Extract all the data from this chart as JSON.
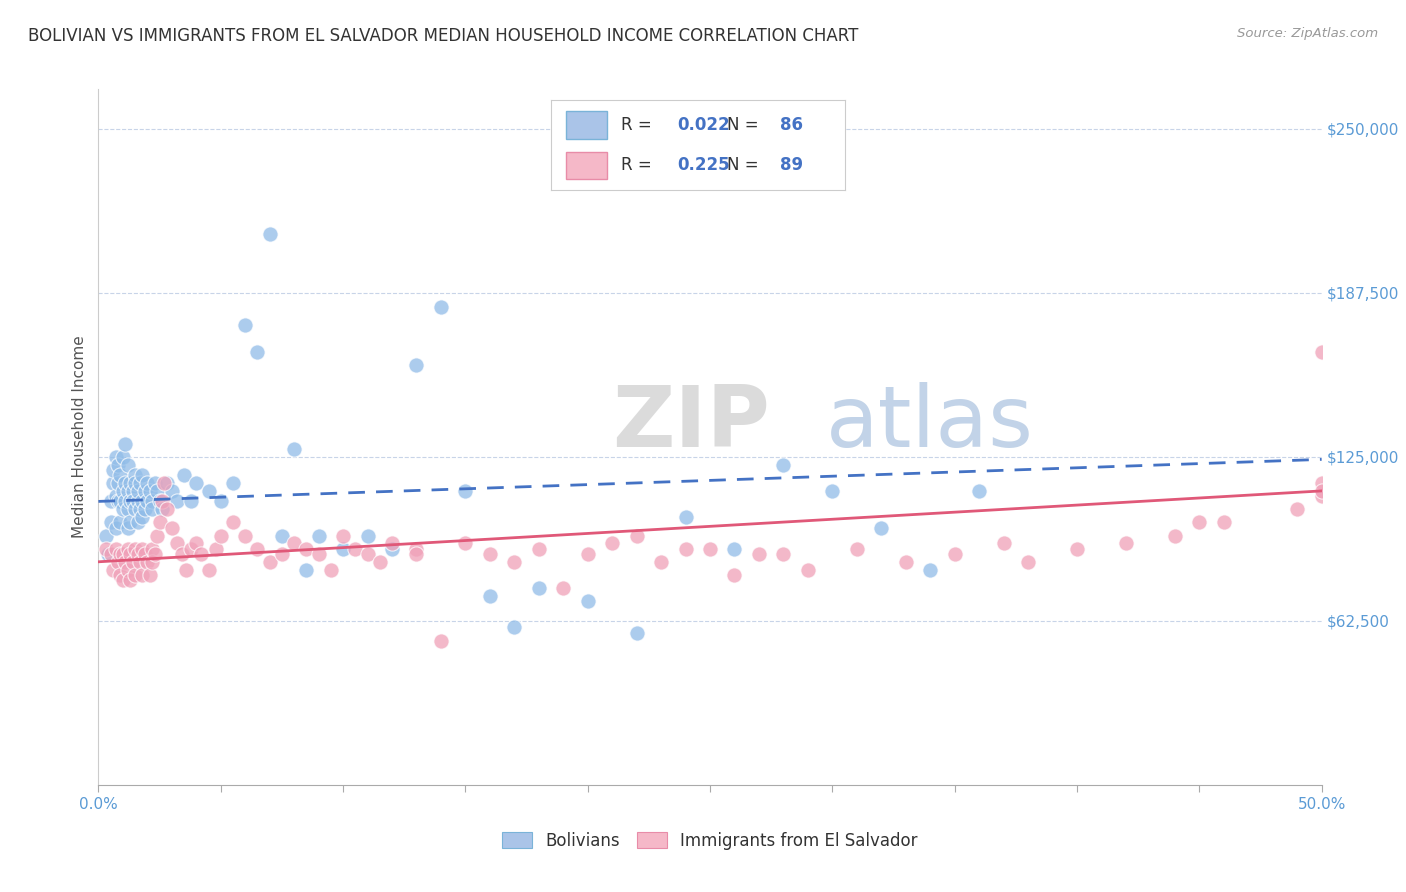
{
  "title": "BOLIVIAN VS IMMIGRANTS FROM EL SALVADOR MEDIAN HOUSEHOLD INCOME CORRELATION CHART",
  "source": "Source: ZipAtlas.com",
  "ylabel": "Median Household Income",
  "y_ticks": [
    62500,
    125000,
    187500,
    250000
  ],
  "y_tick_labels": [
    "$62,500",
    "$125,000",
    "$187,500",
    "$250,000"
  ],
  "x_range": [
    0.0,
    0.5
  ],
  "y_range": [
    0,
    265000
  ],
  "legend_entry1": {
    "color_face": "#aac4e8",
    "color_border": "#7ab3d8",
    "R": "0.022",
    "N": "86"
  },
  "legend_entry2": {
    "color_face": "#f5b8c8",
    "color_border": "#e88ca8",
    "R": "0.225",
    "N": "89"
  },
  "legend_label1": "Bolivians",
  "legend_label2": "Immigrants from El Salvador",
  "blue_scatter_color": "#90bce8",
  "pink_scatter_color": "#f0a0b8",
  "blue_line_color": "#4472c4",
  "pink_line_color": "#e05878",
  "watermark_zip": "ZIP",
  "watermark_atlas": "atlas",
  "background_color": "#ffffff",
  "grid_color": "#c8d4e8",
  "axis_tick_color": "#5b9bd5",
  "title_color": "#333333",
  "ylabel_color": "#555555",
  "title_fontsize": 12,
  "label_fontsize": 11,
  "tick_fontsize": 11,
  "blue_scatter_x": [
    0.003,
    0.004,
    0.005,
    0.005,
    0.006,
    0.006,
    0.007,
    0.007,
    0.007,
    0.008,
    0.008,
    0.008,
    0.009,
    0.009,
    0.009,
    0.01,
    0.01,
    0.01,
    0.011,
    0.011,
    0.011,
    0.012,
    0.012,
    0.012,
    0.012,
    0.013,
    0.013,
    0.013,
    0.014,
    0.014,
    0.015,
    0.015,
    0.015,
    0.016,
    0.016,
    0.016,
    0.017,
    0.017,
    0.018,
    0.018,
    0.018,
    0.019,
    0.019,
    0.02,
    0.02,
    0.021,
    0.022,
    0.022,
    0.023,
    0.024,
    0.025,
    0.026,
    0.028,
    0.03,
    0.032,
    0.035,
    0.038,
    0.04,
    0.045,
    0.05,
    0.055,
    0.06,
    0.065,
    0.07,
    0.075,
    0.08,
    0.085,
    0.09,
    0.1,
    0.11,
    0.12,
    0.13,
    0.14,
    0.15,
    0.16,
    0.17,
    0.18,
    0.2,
    0.22,
    0.24,
    0.26,
    0.28,
    0.3,
    0.32,
    0.34,
    0.36
  ],
  "blue_scatter_y": [
    95000,
    88000,
    100000,
    108000,
    115000,
    120000,
    98000,
    110000,
    125000,
    108000,
    115000,
    122000,
    100000,
    108000,
    118000,
    105000,
    112000,
    125000,
    108000,
    115000,
    130000,
    98000,
    105000,
    112000,
    122000,
    108000,
    115000,
    100000,
    112000,
    108000,
    118000,
    105000,
    115000,
    108000,
    112000,
    100000,
    105000,
    115000,
    108000,
    118000,
    102000,
    112000,
    105000,
    108000,
    115000,
    112000,
    108000,
    105000,
    115000,
    112000,
    108000,
    105000,
    115000,
    112000,
    108000,
    118000,
    108000,
    115000,
    112000,
    108000,
    115000,
    175000,
    165000,
    210000,
    95000,
    128000,
    82000,
    95000,
    90000,
    95000,
    90000,
    160000,
    182000,
    112000,
    72000,
    60000,
    75000,
    70000,
    58000,
    102000,
    90000,
    122000,
    112000,
    98000,
    82000,
    112000
  ],
  "pink_scatter_x": [
    0.003,
    0.005,
    0.006,
    0.007,
    0.008,
    0.009,
    0.009,
    0.01,
    0.01,
    0.011,
    0.012,
    0.012,
    0.013,
    0.013,
    0.014,
    0.015,
    0.015,
    0.016,
    0.017,
    0.018,
    0.018,
    0.019,
    0.02,
    0.021,
    0.022,
    0.022,
    0.023,
    0.024,
    0.025,
    0.026,
    0.027,
    0.028,
    0.03,
    0.032,
    0.034,
    0.036,
    0.038,
    0.04,
    0.042,
    0.045,
    0.048,
    0.05,
    0.055,
    0.06,
    0.065,
    0.07,
    0.075,
    0.08,
    0.085,
    0.09,
    0.095,
    0.1,
    0.105,
    0.11,
    0.115,
    0.12,
    0.13,
    0.14,
    0.15,
    0.16,
    0.17,
    0.18,
    0.19,
    0.2,
    0.21,
    0.22,
    0.23,
    0.25,
    0.27,
    0.29,
    0.31,
    0.33,
    0.35,
    0.38,
    0.4,
    0.42,
    0.44,
    0.46,
    0.37,
    0.28,
    0.26,
    0.24,
    0.13,
    0.45,
    0.49,
    0.5,
    0.5,
    0.5,
    0.5
  ],
  "pink_scatter_y": [
    90000,
    88000,
    82000,
    90000,
    85000,
    88000,
    80000,
    88000,
    78000,
    85000,
    82000,
    90000,
    88000,
    78000,
    85000,
    80000,
    90000,
    88000,
    85000,
    90000,
    80000,
    88000,
    85000,
    80000,
    90000,
    85000,
    88000,
    95000,
    100000,
    108000,
    115000,
    105000,
    98000,
    92000,
    88000,
    82000,
    90000,
    92000,
    88000,
    82000,
    90000,
    95000,
    100000,
    95000,
    90000,
    85000,
    88000,
    92000,
    90000,
    88000,
    82000,
    95000,
    90000,
    88000,
    85000,
    92000,
    90000,
    55000,
    92000,
    88000,
    85000,
    90000,
    75000,
    88000,
    92000,
    95000,
    85000,
    90000,
    88000,
    82000,
    90000,
    85000,
    88000,
    85000,
    90000,
    92000,
    95000,
    100000,
    92000,
    88000,
    80000,
    90000,
    88000,
    100000,
    105000,
    165000,
    110000,
    115000,
    112000
  ]
}
